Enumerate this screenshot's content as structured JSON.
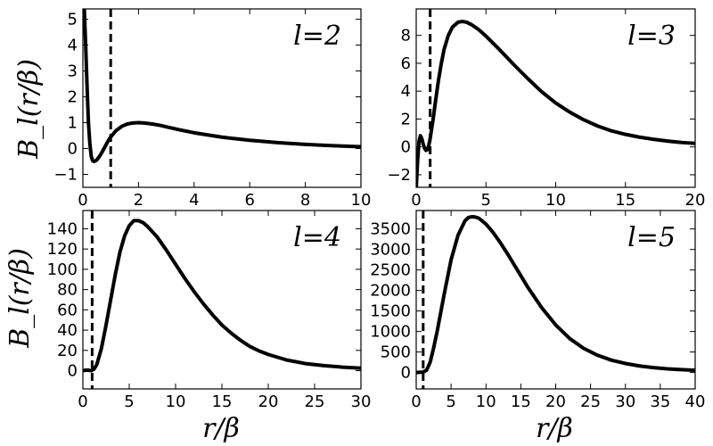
{
  "figure": {
    "ylabel": "B_l(r/β)",
    "xlabel": "r/β"
  },
  "chart_data": [
    {
      "type": "line",
      "panel_label": "l=2",
      "l": 2,
      "xlim": [
        0,
        10
      ],
      "ylim": [
        -1.5,
        5.4
      ],
      "xticks": [
        0,
        2,
        4,
        6,
        8,
        10
      ],
      "yticks": [
        -1,
        0,
        1,
        2,
        3,
        4,
        5
      ],
      "vline_x": 1,
      "series": [
        {
          "x": [
            0.0,
            0.05,
            0.1,
            0.15,
            0.2,
            0.25,
            0.3,
            0.35,
            0.4,
            0.45,
            0.5,
            0.6,
            0.7,
            0.8,
            0.9,
            1.0,
            1.2,
            1.4,
            1.6,
            1.8,
            2.0,
            2.2,
            2.5,
            2.8,
            3.0,
            3.5,
            4.0,
            5.0,
            6.0,
            7.0,
            8.0,
            9.0,
            10.0
          ],
          "y": [
            6.0,
            5.4,
            4.0,
            2.4,
            1.0,
            0.2,
            -0.3,
            -0.47,
            -0.5,
            -0.48,
            -0.44,
            -0.3,
            -0.12,
            0.08,
            0.28,
            0.45,
            0.7,
            0.86,
            0.95,
            0.99,
            1.0,
            0.99,
            0.95,
            0.89,
            0.84,
            0.72,
            0.61,
            0.44,
            0.32,
            0.23,
            0.16,
            0.11,
            0.07
          ]
        }
      ]
    },
    {
      "type": "line",
      "panel_label": "l=3",
      "l": 3,
      "xlim": [
        0,
        20
      ],
      "ylim": [
        -2.9,
        9.9
      ],
      "xticks": [
        0,
        5,
        10,
        15,
        20
      ],
      "yticks": [
        -2,
        0,
        2,
        4,
        6,
        8
      ],
      "vline_x": 1,
      "series": [
        {
          "x": [
            0.0,
            0.1,
            0.2,
            0.3,
            0.4,
            0.5,
            0.6,
            0.7,
            0.8,
            0.9,
            1.0,
            1.2,
            1.4,
            1.6,
            1.8,
            2.0,
            2.3,
            2.6,
            3.0,
            3.3,
            3.6,
            4.0,
            4.5,
            5.0,
            6.0,
            7.0,
            8.0,
            9.0,
            10.0,
            11.0,
            12.0,
            13.0,
            14.0,
            15.0,
            16.0,
            17.0,
            18.0,
            19.0,
            20.0
          ],
          "y": [
            -3.0,
            -1.0,
            0.4,
            0.8,
            0.6,
            0.2,
            -0.1,
            -0.25,
            -0.2,
            0.1,
            0.6,
            1.9,
            3.4,
            4.8,
            6.0,
            7.0,
            8.0,
            8.6,
            8.95,
            9.0,
            8.95,
            8.75,
            8.4,
            7.95,
            6.95,
            5.9,
            4.9,
            3.95,
            3.15,
            2.5,
            1.95,
            1.5,
            1.15,
            0.9,
            0.7,
            0.55,
            0.42,
            0.32,
            0.25
          ]
        }
      ]
    },
    {
      "type": "line",
      "panel_label": "l=4",
      "l": 4,
      "xlim": [
        0,
        30
      ],
      "ylim": [
        -18,
        158
      ],
      "xticks": [
        0,
        5,
        10,
        15,
        20,
        25,
        30
      ],
      "yticks": [
        0,
        20,
        40,
        60,
        80,
        100,
        120,
        140
      ],
      "vline_x": 1,
      "series": [
        {
          "x": [
            0.0,
            0.3,
            0.6,
            0.9,
            1.2,
            1.5,
            2.0,
            2.5,
            3.0,
            3.5,
            4.0,
            4.5,
            5.0,
            5.5,
            6.0,
            6.5,
            7.0,
            8.0,
            9.0,
            10.0,
            11.0,
            12.0,
            13.0,
            14.0,
            15.0,
            16.0,
            17.0,
            18.0,
            19.0,
            20.0,
            22.0,
            24.0,
            26.0,
            28.0,
            30.0
          ],
          "y": [
            0.0,
            0.5,
            0.5,
            0.0,
            1.5,
            6.0,
            22.0,
            45.0,
            70.0,
            95.0,
            117.0,
            133.0,
            143.0,
            148.0,
            148.0,
            146.0,
            142.0,
            132.0,
            119.0,
            105.0,
            91.0,
            78.0,
            66.0,
            55.0,
            45.0,
            37.0,
            30.0,
            24.0,
            19.5,
            16.0,
            10.5,
            7.0,
            5.0,
            3.5,
            2.5
          ]
        }
      ]
    },
    {
      "type": "line",
      "panel_label": "l=5",
      "l": 5,
      "xlim": [
        0,
        40
      ],
      "ylim": [
        -400,
        3950
      ],
      "xticks": [
        0,
        5,
        10,
        15,
        20,
        25,
        30,
        35,
        40
      ],
      "yticks": [
        0,
        500,
        1000,
        1500,
        2000,
        2500,
        3000,
        3500
      ],
      "vline_x": 1,
      "series": [
        {
          "x": [
            0.0,
            0.5,
            1.0,
            1.5,
            2.0,
            2.5,
            3.0,
            4.0,
            5.0,
            6.0,
            7.0,
            7.5,
            8.0,
            8.5,
            9.0,
            10.0,
            11.0,
            12.0,
            13.0,
            14.0,
            15.0,
            16.0,
            18.0,
            20.0,
            22.0,
            24.0,
            26.0,
            28.0,
            30.0,
            32.0,
            34.0,
            36.0,
            38.0,
            40.0
          ],
          "y": [
            0.0,
            5.0,
            10.0,
            60.0,
            250.0,
            600.0,
            1000.0,
            1900.0,
            2750.0,
            3350.0,
            3700.0,
            3780.0,
            3800.0,
            3790.0,
            3760.0,
            3620.0,
            3420.0,
            3180.0,
            2920.0,
            2640.0,
            2360.0,
            2080.0,
            1580.0,
            1160.0,
            830.0,
            590.0,
            420.0,
            300.0,
            220.0,
            160.0,
            120.0,
            90.0,
            70.0,
            55.0
          ]
        }
      ]
    }
  ]
}
